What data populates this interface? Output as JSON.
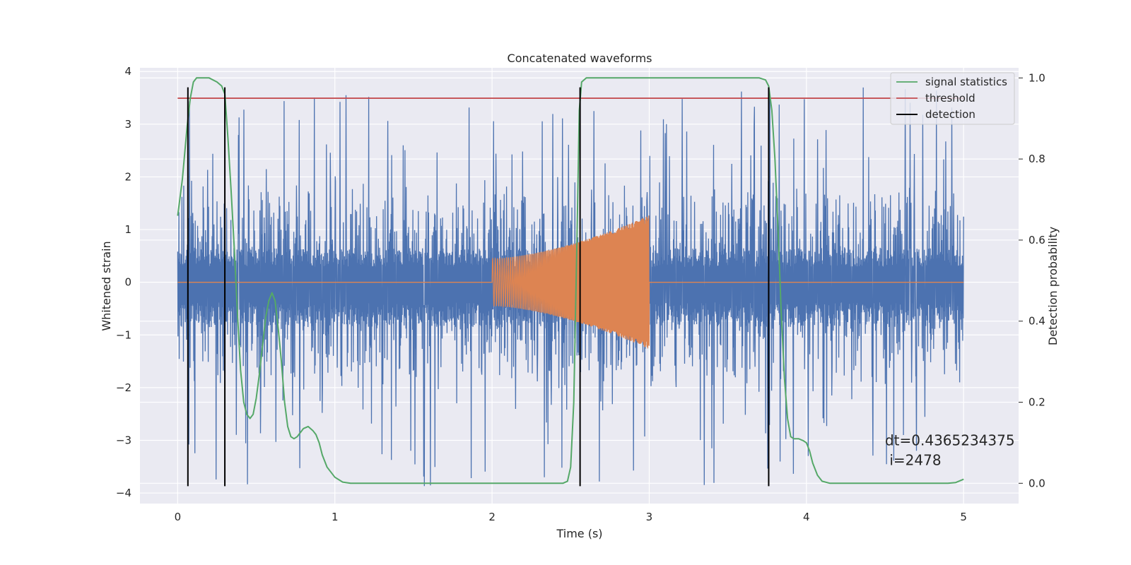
{
  "chart_data": {
    "type": "line",
    "title": "Concatenated waveforms",
    "xlabel": "Time (s)",
    "ylabel_left": "Whitened strain",
    "ylabel_right": "Detection probability",
    "xlim": [
      -0.24,
      5.35
    ],
    "ylim_left": [
      -4.2,
      4.07
    ],
    "ylim_right": [
      -0.05,
      1.025
    ],
    "x_ticks": [
      0,
      1,
      2,
      3,
      4,
      5
    ],
    "y_left_ticks": [
      -4,
      -3,
      -2,
      -1,
      0,
      1,
      2,
      3,
      4
    ],
    "y_right_ticks": [
      0.0,
      0.2,
      0.4,
      0.6,
      0.8,
      1.0
    ],
    "grid": true,
    "legend_position": "top-right",
    "colors": {
      "strain": "#4c72b0",
      "injection": "#dd8452",
      "signal_statistics": "#55a868",
      "threshold": "#c44e52",
      "detection": "#000000",
      "plot_background": "#eaeaf2",
      "grid": "#ffffff"
    },
    "series": [
      {
        "name": "signal statistics",
        "axis": "right",
        "x": [
          0,
          0.03,
          0.06,
          0.08,
          0.1,
          0.12,
          0.15,
          0.2,
          0.25,
          0.28,
          0.3,
          0.32,
          0.34,
          0.36,
          0.38,
          0.4,
          0.42,
          0.44,
          0.46,
          0.48,
          0.5,
          0.52,
          0.54,
          0.56,
          0.58,
          0.6,
          0.62,
          0.64,
          0.66,
          0.68,
          0.7,
          0.72,
          0.74,
          0.76,
          0.78,
          0.8,
          0.83,
          0.86,
          0.88,
          0.9,
          0.92,
          0.95,
          1.0,
          1.05,
          1.1,
          1.2,
          1.5,
          2.0,
          2.3,
          2.45,
          2.48,
          2.5,
          2.52,
          2.54,
          2.555,
          2.57,
          2.6,
          2.7,
          3.0,
          3.5,
          3.7,
          3.74,
          3.76,
          3.78,
          3.8,
          3.82,
          3.84,
          3.86,
          3.88,
          3.9,
          3.92,
          3.95,
          3.98,
          4.0,
          4.02,
          4.04,
          4.07,
          4.1,
          4.15,
          4.3,
          4.6,
          4.9,
          4.95,
          5.0
        ],
        "y": [
          0.66,
          0.75,
          0.88,
          0.95,
          0.99,
          1.0,
          1.0,
          1.0,
          0.99,
          0.98,
          0.96,
          0.85,
          0.72,
          0.58,
          0.42,
          0.28,
          0.2,
          0.17,
          0.16,
          0.17,
          0.21,
          0.27,
          0.34,
          0.41,
          0.45,
          0.47,
          0.45,
          0.38,
          0.3,
          0.2,
          0.14,
          0.115,
          0.11,
          0.115,
          0.125,
          0.135,
          0.14,
          0.13,
          0.12,
          0.1,
          0.07,
          0.04,
          0.015,
          0.003,
          0.0,
          0.0,
          0.0,
          0.0,
          0.0,
          0.0,
          0.005,
          0.04,
          0.2,
          0.6,
          0.92,
          0.99,
          1.0,
          1.0,
          1.0,
          1.0,
          1.0,
          0.995,
          0.98,
          0.92,
          0.8,
          0.62,
          0.42,
          0.26,
          0.16,
          0.115,
          0.11,
          0.11,
          0.105,
          0.1,
          0.08,
          0.05,
          0.02,
          0.005,
          0.0,
          0.0,
          0.0,
          0.0,
          0.002,
          0.01
        ]
      },
      {
        "name": "threshold",
        "axis": "right",
        "x": [
          0,
          5
        ],
        "y": [
          0.95,
          0.95
        ]
      },
      {
        "name": "detection",
        "axis": "left",
        "x": [
          0.065,
          0.3,
          2.56,
          3.76
        ],
        "y_range": [
          -3.87,
          3.7
        ]
      },
      {
        "name": "",
        "axis": "left",
        "description": "whitened strain noise",
        "x_range": [
          0,
          5
        ],
        "core_amplitude": [
          -0.85,
          0.65
        ],
        "spike_max": 3.7,
        "spike_min": -3.87
      },
      {
        "name": "",
        "axis": "left",
        "description": "injected chirp",
        "x_range": [
          2.0,
          3.0
        ],
        "amplitude_start": 0.45,
        "amplitude_end": 1.27
      }
    ],
    "annotation": {
      "line1": "dt=0.4365234375",
      "line2": " i=2478",
      "x": 4.5,
      "y": -3.0
    }
  }
}
